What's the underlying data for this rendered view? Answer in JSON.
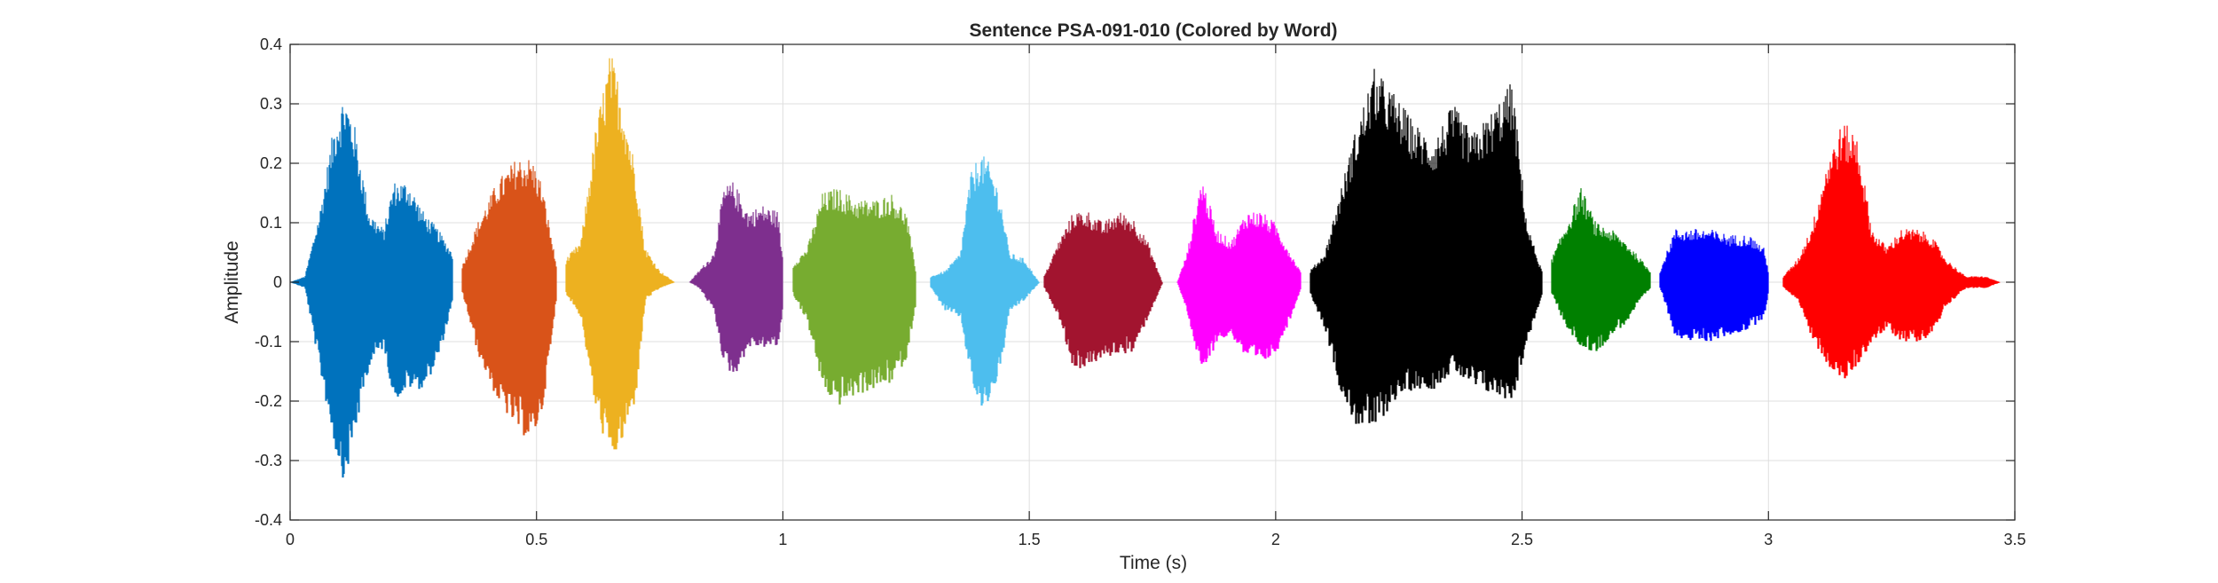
{
  "chart_data": {
    "type": "line",
    "title": "Sentence PSA-091-010 (Colored by Word)",
    "xlabel": "Time (s)",
    "ylabel": "Amplitude",
    "xlim": [
      0,
      3.5
    ],
    "ylim": [
      -0.4,
      0.4
    ],
    "x_ticks": [
      0,
      0.5,
      1,
      1.5,
      2,
      2.5,
      3,
      3.5
    ],
    "x_tick_labels": [
      "0",
      "0.5",
      "1",
      "1.5",
      "2",
      "2.5",
      "3",
      "3.5"
    ],
    "y_ticks": [
      0.4,
      0.3,
      0.2,
      0.1,
      0,
      -0.1,
      -0.2,
      -0.3,
      -0.4
    ],
    "y_tick_labels": [
      "0.4",
      "0.3",
      "0.2",
      "0.1",
      "0",
      "-0.1",
      "-0.2",
      "-0.3",
      "-0.4"
    ],
    "grid": true,
    "legend": "none",
    "segments": [
      {
        "color": "#0072BD",
        "start": 0.0,
        "end": 0.33,
        "envelope": [
          [
            0.0,
            0.0,
            0.0
          ],
          [
            0.03,
            0.01,
            -0.01
          ],
          [
            0.06,
            0.12,
            -0.15
          ],
          [
            0.09,
            0.27,
            -0.28
          ],
          [
            0.11,
            0.32,
            -0.34
          ],
          [
            0.13,
            0.27,
            -0.26
          ],
          [
            0.16,
            0.12,
            -0.14
          ],
          [
            0.19,
            0.09,
            -0.11
          ],
          [
            0.21,
            0.17,
            -0.2
          ],
          [
            0.24,
            0.17,
            -0.18
          ],
          [
            0.27,
            0.12,
            -0.18
          ],
          [
            0.3,
            0.09,
            -0.13
          ],
          [
            0.33,
            0.05,
            -0.03
          ]
        ]
      },
      {
        "color": "#D95319",
        "start": 0.35,
        "end": 0.54,
        "envelope": [
          [
            0.35,
            0.03,
            -0.02
          ],
          [
            0.38,
            0.1,
            -0.12
          ],
          [
            0.42,
            0.17,
            -0.2
          ],
          [
            0.46,
            0.21,
            -0.25
          ],
          [
            0.49,
            0.21,
            -0.27
          ],
          [
            0.51,
            0.17,
            -0.22
          ],
          [
            0.53,
            0.08,
            -0.1
          ],
          [
            0.54,
            0.03,
            -0.02
          ]
        ]
      },
      {
        "color": "#EDB120",
        "start": 0.56,
        "end": 0.78,
        "envelope": [
          [
            0.56,
            0.04,
            -0.02
          ],
          [
            0.59,
            0.07,
            -0.06
          ],
          [
            0.62,
            0.26,
            -0.22
          ],
          [
            0.65,
            0.39,
            -0.3
          ],
          [
            0.67,
            0.33,
            -0.28
          ],
          [
            0.7,
            0.2,
            -0.2
          ],
          [
            0.72,
            0.06,
            -0.03
          ],
          [
            0.75,
            0.02,
            -0.01
          ],
          [
            0.78,
            0.0,
            0.0
          ]
        ]
      },
      {
        "color": "#7E2F8E",
        "start": 0.81,
        "end": 1.0,
        "envelope": [
          [
            0.81,
            0.0,
            0.0
          ],
          [
            0.83,
            0.02,
            -0.01
          ],
          [
            0.86,
            0.05,
            -0.05
          ],
          [
            0.88,
            0.16,
            -0.14
          ],
          [
            0.9,
            0.17,
            -0.16
          ],
          [
            0.93,
            0.12,
            -0.11
          ],
          [
            0.96,
            0.13,
            -0.11
          ],
          [
            0.99,
            0.12,
            -0.11
          ],
          [
            1.0,
            0.04,
            -0.03
          ]
        ]
      },
      {
        "color": "#77AC30",
        "start": 1.02,
        "end": 1.27,
        "envelope": [
          [
            1.02,
            0.03,
            -0.02
          ],
          [
            1.05,
            0.06,
            -0.07
          ],
          [
            1.08,
            0.15,
            -0.18
          ],
          [
            1.11,
            0.16,
            -0.21
          ],
          [
            1.15,
            0.14,
            -0.19
          ],
          [
            1.19,
            0.14,
            -0.18
          ],
          [
            1.22,
            0.15,
            -0.17
          ],
          [
            1.25,
            0.12,
            -0.13
          ],
          [
            1.27,
            0.02,
            -0.03
          ]
        ]
      },
      {
        "color": "#4DBEEE",
        "start": 1.3,
        "end": 1.52,
        "envelope": [
          [
            1.3,
            0.01,
            -0.01
          ],
          [
            1.33,
            0.02,
            -0.05
          ],
          [
            1.36,
            0.05,
            -0.06
          ],
          [
            1.38,
            0.18,
            -0.16
          ],
          [
            1.4,
            0.22,
            -0.22
          ],
          [
            1.42,
            0.2,
            -0.2
          ],
          [
            1.44,
            0.15,
            -0.15
          ],
          [
            1.46,
            0.05,
            -0.05
          ],
          [
            1.49,
            0.04,
            -0.03
          ],
          [
            1.52,
            0.0,
            0.0
          ]
        ]
      },
      {
        "color": "#A2142F",
        "start": 1.53,
        "end": 1.77,
        "envelope": [
          [
            1.53,
            0.01,
            -0.01
          ],
          [
            1.56,
            0.07,
            -0.06
          ],
          [
            1.59,
            0.12,
            -0.15
          ],
          [
            1.62,
            0.12,
            -0.14
          ],
          [
            1.65,
            0.1,
            -0.13
          ],
          [
            1.68,
            0.12,
            -0.12
          ],
          [
            1.71,
            0.11,
            -0.12
          ],
          [
            1.74,
            0.07,
            -0.06
          ],
          [
            1.77,
            0.0,
            0.0
          ]
        ]
      },
      {
        "color": "#FF00FF",
        "start": 1.8,
        "end": 2.05,
        "envelope": [
          [
            1.8,
            0.0,
            0.0
          ],
          [
            1.82,
            0.05,
            -0.05
          ],
          [
            1.85,
            0.18,
            -0.16
          ],
          [
            1.88,
            0.09,
            -0.1
          ],
          [
            1.91,
            0.07,
            -0.09
          ],
          [
            1.94,
            0.12,
            -0.13
          ],
          [
            1.97,
            0.12,
            -0.14
          ],
          [
            2.0,
            0.1,
            -0.12
          ],
          [
            2.03,
            0.05,
            -0.06
          ],
          [
            2.05,
            0.02,
            -0.01
          ]
        ]
      },
      {
        "color": "#000000",
        "start": 2.07,
        "end": 2.54,
        "envelope": [
          [
            2.07,
            0.02,
            -0.02
          ],
          [
            2.1,
            0.05,
            -0.08
          ],
          [
            2.13,
            0.15,
            -0.18
          ],
          [
            2.16,
            0.25,
            -0.24
          ],
          [
            2.2,
            0.36,
            -0.25
          ],
          [
            2.24,
            0.32,
            -0.2
          ],
          [
            2.28,
            0.27,
            -0.18
          ],
          [
            2.32,
            0.24,
            -0.18
          ],
          [
            2.36,
            0.3,
            -0.15
          ],
          [
            2.4,
            0.25,
            -0.18
          ],
          [
            2.44,
            0.29,
            -0.19
          ],
          [
            2.48,
            0.34,
            -0.2
          ],
          [
            2.51,
            0.1,
            -0.1
          ],
          [
            2.54,
            0.02,
            -0.02
          ]
        ]
      },
      {
        "color": "#008000",
        "start": 2.56,
        "end": 2.76,
        "envelope": [
          [
            2.56,
            0.04,
            -0.02
          ],
          [
            2.59,
            0.1,
            -0.08
          ],
          [
            2.62,
            0.16,
            -0.11
          ],
          [
            2.65,
            0.1,
            -0.12
          ],
          [
            2.68,
            0.09,
            -0.09
          ],
          [
            2.71,
            0.07,
            -0.07
          ],
          [
            2.74,
            0.04,
            -0.03
          ],
          [
            2.76,
            0.02,
            -0.01
          ]
        ]
      },
      {
        "color": "#0000FF",
        "start": 2.78,
        "end": 3.0,
        "envelope": [
          [
            2.78,
            0.02,
            -0.01
          ],
          [
            2.81,
            0.09,
            -0.09
          ],
          [
            2.84,
            0.09,
            -0.1
          ],
          [
            2.88,
            0.09,
            -0.1
          ],
          [
            2.92,
            0.08,
            -0.09
          ],
          [
            2.96,
            0.08,
            -0.08
          ],
          [
            2.99,
            0.06,
            -0.06
          ],
          [
            3.0,
            0.02,
            -0.01
          ]
        ]
      },
      {
        "color": "#FF0000",
        "start": 3.03,
        "end": 3.47,
        "envelope": [
          [
            3.03,
            0.01,
            -0.01
          ],
          [
            3.06,
            0.04,
            -0.03
          ],
          [
            3.09,
            0.1,
            -0.1
          ],
          [
            3.12,
            0.21,
            -0.14
          ],
          [
            3.15,
            0.27,
            -0.17
          ],
          [
            3.18,
            0.25,
            -0.14
          ],
          [
            3.21,
            0.09,
            -0.1
          ],
          [
            3.24,
            0.06,
            -0.08
          ],
          [
            3.27,
            0.09,
            -0.1
          ],
          [
            3.3,
            0.09,
            -0.1
          ],
          [
            3.33,
            0.08,
            -0.09
          ],
          [
            3.36,
            0.04,
            -0.04
          ],
          [
            3.4,
            0.01,
            -0.01
          ],
          [
            3.44,
            0.01,
            -0.01
          ],
          [
            3.47,
            0.0,
            0.0
          ]
        ]
      }
    ]
  }
}
